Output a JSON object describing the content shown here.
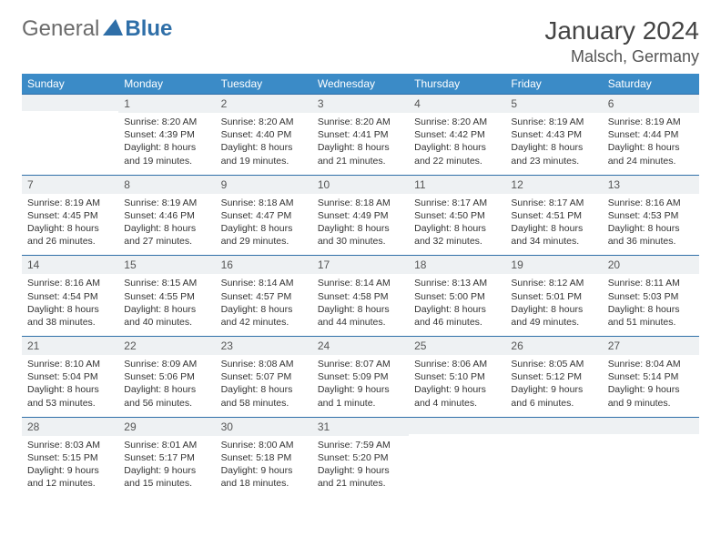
{
  "logo": {
    "general": "General",
    "blue": "Blue"
  },
  "title": "January 2024",
  "location": "Malsch, Germany",
  "colors": {
    "header_bg": "#3b8bc7",
    "header_text": "#ffffff",
    "daynum_bg": "#eef1f3",
    "row_border": "#2f6fa8",
    "body_text": "#333333",
    "logo_gray": "#6b6b6b",
    "logo_blue": "#2f6fa8"
  },
  "day_headers": [
    "Sunday",
    "Monday",
    "Tuesday",
    "Wednesday",
    "Thursday",
    "Friday",
    "Saturday"
  ],
  "weeks": [
    [
      {
        "n": "",
        "sr": "",
        "ss": "",
        "dl": ""
      },
      {
        "n": "1",
        "sr": "Sunrise: 8:20 AM",
        "ss": "Sunset: 4:39 PM",
        "dl": "Daylight: 8 hours and 19 minutes."
      },
      {
        "n": "2",
        "sr": "Sunrise: 8:20 AM",
        "ss": "Sunset: 4:40 PM",
        "dl": "Daylight: 8 hours and 19 minutes."
      },
      {
        "n": "3",
        "sr": "Sunrise: 8:20 AM",
        "ss": "Sunset: 4:41 PM",
        "dl": "Daylight: 8 hours and 21 minutes."
      },
      {
        "n": "4",
        "sr": "Sunrise: 8:20 AM",
        "ss": "Sunset: 4:42 PM",
        "dl": "Daylight: 8 hours and 22 minutes."
      },
      {
        "n": "5",
        "sr": "Sunrise: 8:19 AM",
        "ss": "Sunset: 4:43 PM",
        "dl": "Daylight: 8 hours and 23 minutes."
      },
      {
        "n": "6",
        "sr": "Sunrise: 8:19 AM",
        "ss": "Sunset: 4:44 PM",
        "dl": "Daylight: 8 hours and 24 minutes."
      }
    ],
    [
      {
        "n": "7",
        "sr": "Sunrise: 8:19 AM",
        "ss": "Sunset: 4:45 PM",
        "dl": "Daylight: 8 hours and 26 minutes."
      },
      {
        "n": "8",
        "sr": "Sunrise: 8:19 AM",
        "ss": "Sunset: 4:46 PM",
        "dl": "Daylight: 8 hours and 27 minutes."
      },
      {
        "n": "9",
        "sr": "Sunrise: 8:18 AM",
        "ss": "Sunset: 4:47 PM",
        "dl": "Daylight: 8 hours and 29 minutes."
      },
      {
        "n": "10",
        "sr": "Sunrise: 8:18 AM",
        "ss": "Sunset: 4:49 PM",
        "dl": "Daylight: 8 hours and 30 minutes."
      },
      {
        "n": "11",
        "sr": "Sunrise: 8:17 AM",
        "ss": "Sunset: 4:50 PM",
        "dl": "Daylight: 8 hours and 32 minutes."
      },
      {
        "n": "12",
        "sr": "Sunrise: 8:17 AM",
        "ss": "Sunset: 4:51 PM",
        "dl": "Daylight: 8 hours and 34 minutes."
      },
      {
        "n": "13",
        "sr": "Sunrise: 8:16 AM",
        "ss": "Sunset: 4:53 PM",
        "dl": "Daylight: 8 hours and 36 minutes."
      }
    ],
    [
      {
        "n": "14",
        "sr": "Sunrise: 8:16 AM",
        "ss": "Sunset: 4:54 PM",
        "dl": "Daylight: 8 hours and 38 minutes."
      },
      {
        "n": "15",
        "sr": "Sunrise: 8:15 AM",
        "ss": "Sunset: 4:55 PM",
        "dl": "Daylight: 8 hours and 40 minutes."
      },
      {
        "n": "16",
        "sr": "Sunrise: 8:14 AM",
        "ss": "Sunset: 4:57 PM",
        "dl": "Daylight: 8 hours and 42 minutes."
      },
      {
        "n": "17",
        "sr": "Sunrise: 8:14 AM",
        "ss": "Sunset: 4:58 PM",
        "dl": "Daylight: 8 hours and 44 minutes."
      },
      {
        "n": "18",
        "sr": "Sunrise: 8:13 AM",
        "ss": "Sunset: 5:00 PM",
        "dl": "Daylight: 8 hours and 46 minutes."
      },
      {
        "n": "19",
        "sr": "Sunrise: 8:12 AM",
        "ss": "Sunset: 5:01 PM",
        "dl": "Daylight: 8 hours and 49 minutes."
      },
      {
        "n": "20",
        "sr": "Sunrise: 8:11 AM",
        "ss": "Sunset: 5:03 PM",
        "dl": "Daylight: 8 hours and 51 minutes."
      }
    ],
    [
      {
        "n": "21",
        "sr": "Sunrise: 8:10 AM",
        "ss": "Sunset: 5:04 PM",
        "dl": "Daylight: 8 hours and 53 minutes."
      },
      {
        "n": "22",
        "sr": "Sunrise: 8:09 AM",
        "ss": "Sunset: 5:06 PM",
        "dl": "Daylight: 8 hours and 56 minutes."
      },
      {
        "n": "23",
        "sr": "Sunrise: 8:08 AM",
        "ss": "Sunset: 5:07 PM",
        "dl": "Daylight: 8 hours and 58 minutes."
      },
      {
        "n": "24",
        "sr": "Sunrise: 8:07 AM",
        "ss": "Sunset: 5:09 PM",
        "dl": "Daylight: 9 hours and 1 minute."
      },
      {
        "n": "25",
        "sr": "Sunrise: 8:06 AM",
        "ss": "Sunset: 5:10 PM",
        "dl": "Daylight: 9 hours and 4 minutes."
      },
      {
        "n": "26",
        "sr": "Sunrise: 8:05 AM",
        "ss": "Sunset: 5:12 PM",
        "dl": "Daylight: 9 hours and 6 minutes."
      },
      {
        "n": "27",
        "sr": "Sunrise: 8:04 AM",
        "ss": "Sunset: 5:14 PM",
        "dl": "Daylight: 9 hours and 9 minutes."
      }
    ],
    [
      {
        "n": "28",
        "sr": "Sunrise: 8:03 AM",
        "ss": "Sunset: 5:15 PM",
        "dl": "Daylight: 9 hours and 12 minutes."
      },
      {
        "n": "29",
        "sr": "Sunrise: 8:01 AM",
        "ss": "Sunset: 5:17 PM",
        "dl": "Daylight: 9 hours and 15 minutes."
      },
      {
        "n": "30",
        "sr": "Sunrise: 8:00 AM",
        "ss": "Sunset: 5:18 PM",
        "dl": "Daylight: 9 hours and 18 minutes."
      },
      {
        "n": "31",
        "sr": "Sunrise: 7:59 AM",
        "ss": "Sunset: 5:20 PM",
        "dl": "Daylight: 9 hours and 21 minutes."
      },
      {
        "n": "",
        "sr": "",
        "ss": "",
        "dl": ""
      },
      {
        "n": "",
        "sr": "",
        "ss": "",
        "dl": ""
      },
      {
        "n": "",
        "sr": "",
        "ss": "",
        "dl": ""
      }
    ]
  ]
}
